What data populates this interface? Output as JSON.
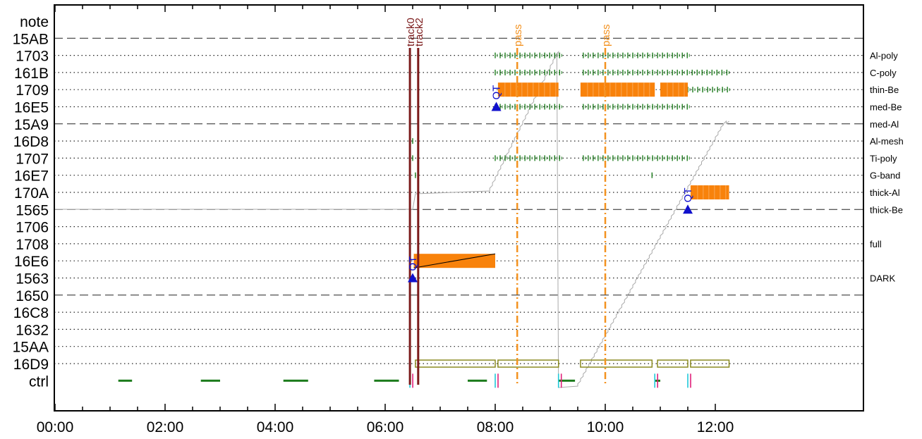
{
  "chart_data": {
    "type": "timeline",
    "title": "",
    "xlabel": "",
    "ylabel": "",
    "x_ticks": [
      "00:00",
      "02:00",
      "04:00",
      "06:00",
      "08:00",
      "10:00",
      "12:00"
    ],
    "xlim_hours": [
      0,
      12.25
    ],
    "rows": [
      {
        "label": "note",
        "style": "none",
        "right_label": ""
      },
      {
        "label": "15AB",
        "style": "dashed",
        "right_label": ""
      },
      {
        "label": "1703",
        "style": "dotted",
        "right_label": "Al-poly"
      },
      {
        "label": "161B",
        "style": "dotted",
        "right_label": "C-poly"
      },
      {
        "label": "1709",
        "style": "dotted",
        "right_label": "thin-Be"
      },
      {
        "label": "16E5",
        "style": "dotted",
        "right_label": "med-Be"
      },
      {
        "label": "15A9",
        "style": "dashed",
        "right_label": "med-Al"
      },
      {
        "label": "16D8",
        "style": "dotted",
        "right_label": "Al-mesh"
      },
      {
        "label": "1707",
        "style": "dotted",
        "right_label": "Ti-poly"
      },
      {
        "label": "16E7",
        "style": "dotted",
        "right_label": "G-band"
      },
      {
        "label": "170A",
        "style": "dotted",
        "right_label": "thick-Al"
      },
      {
        "label": "1565",
        "style": "dashed",
        "right_label": "thick-Be"
      },
      {
        "label": "1706",
        "style": "dotted",
        "right_label": ""
      },
      {
        "label": "1708",
        "style": "dotted",
        "right_label": "full"
      },
      {
        "label": "16E6",
        "style": "dotted",
        "right_label": ""
      },
      {
        "label": "1563",
        "style": "dotted",
        "right_label": "DARK"
      },
      {
        "label": "1650",
        "style": "dashed",
        "right_label": ""
      },
      {
        "label": "16C8",
        "style": "dotted",
        "right_label": ""
      },
      {
        "label": "1632",
        "style": "dotted",
        "right_label": ""
      },
      {
        "label": "15AA",
        "style": "dotted",
        "right_label": ""
      },
      {
        "label": "16D9",
        "style": "dotted",
        "right_label": ""
      },
      {
        "label": "ctrl",
        "style": "none",
        "right_label": ""
      }
    ],
    "markers": [
      {
        "label": "track0",
        "time": 6.45,
        "style": "solid",
        "color": "#7b1a1a"
      },
      {
        "label": "track2",
        "time": 6.6,
        "style": "solid",
        "color": "#7b1a1a"
      },
      {
        "label": "pass",
        "time": 8.4,
        "style": "dashdot",
        "color": "#f39220"
      },
      {
        "label": "pass",
        "time": 10.0,
        "style": "dashdot",
        "color": "#f39220"
      }
    ],
    "exposures": [
      {
        "row": "16E6",
        "start": 6.52,
        "end": 8.0,
        "diagonal": true
      },
      {
        "row": "1709",
        "start": 8.05,
        "end": 9.15,
        "diagonal": false
      },
      {
        "row": "1709",
        "start": 9.55,
        "end": 10.9,
        "diagonal": false
      },
      {
        "row": "1709",
        "start": 11.0,
        "end": 11.5,
        "diagonal": false
      },
      {
        "row": "170A",
        "start": 11.55,
        "end": 12.25,
        "diagonal": false
      }
    ],
    "qt_events": [
      {
        "label": "QT",
        "row": "1563",
        "time": 6.5
      },
      {
        "label": "QT",
        "row": "16E5",
        "time": 8.02
      },
      {
        "label": "QT",
        "row": "1565",
        "time": 11.5
      }
    ],
    "tick_rows": [
      {
        "row": "1703",
        "segments": [
          [
            8.0,
            9.2
          ],
          [
            9.6,
            11.5
          ]
        ]
      },
      {
        "row": "161B",
        "segments": [
          [
            8.0,
            9.2
          ],
          [
            9.6,
            12.25
          ]
        ]
      },
      {
        "row": "1709",
        "segments": [
          [
            11.5,
            12.25
          ]
        ]
      },
      {
        "row": "16E5",
        "segments": [
          [
            8.0,
            9.2
          ],
          [
            9.6,
            11.5
          ]
        ]
      },
      {
        "row": "1707",
        "segments": [
          [
            8.0,
            9.2
          ],
          [
            9.6,
            11.5
          ]
        ]
      }
    ],
    "ctrl_segments": [
      [
        1.15,
        1.4
      ],
      [
        2.65,
        3.0
      ],
      [
        4.15,
        4.6
      ],
      [
        5.8,
        6.25
      ],
      [
        7.5,
        7.85
      ],
      [
        9.15,
        9.45
      ],
      [
        10.9,
        11.0
      ]
    ],
    "open_boxes_row_16D9": [
      [
        6.55,
        8.0
      ],
      [
        8.05,
        9.15
      ],
      [
        9.55,
        10.85
      ],
      [
        10.95,
        11.5
      ],
      [
        11.55,
        12.25
      ]
    ]
  }
}
